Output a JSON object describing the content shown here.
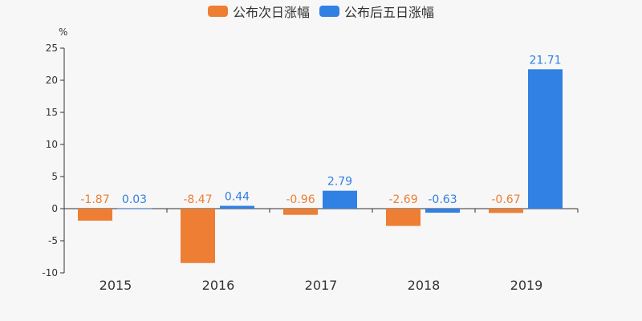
{
  "chart_data": {
    "type": "bar",
    "ylabel": "%",
    "ylim": [
      -10,
      25
    ],
    "yticks": [
      -10,
      -5,
      0,
      5,
      10,
      15,
      20,
      25
    ],
    "categories": [
      "2015",
      "2016",
      "2017",
      "2018",
      "2019"
    ],
    "series": [
      {
        "name": "公布次日涨幅",
        "color": "#ed7e33",
        "values": [
          -1.87,
          -8.47,
          -0.96,
          -2.69,
          -0.67
        ]
      },
      {
        "name": "公布后五日涨幅",
        "color": "#3180e3",
        "values": [
          0.03,
          0.44,
          2.79,
          -0.63,
          21.71
        ]
      }
    ],
    "legend": "top-center",
    "grid": false
  }
}
